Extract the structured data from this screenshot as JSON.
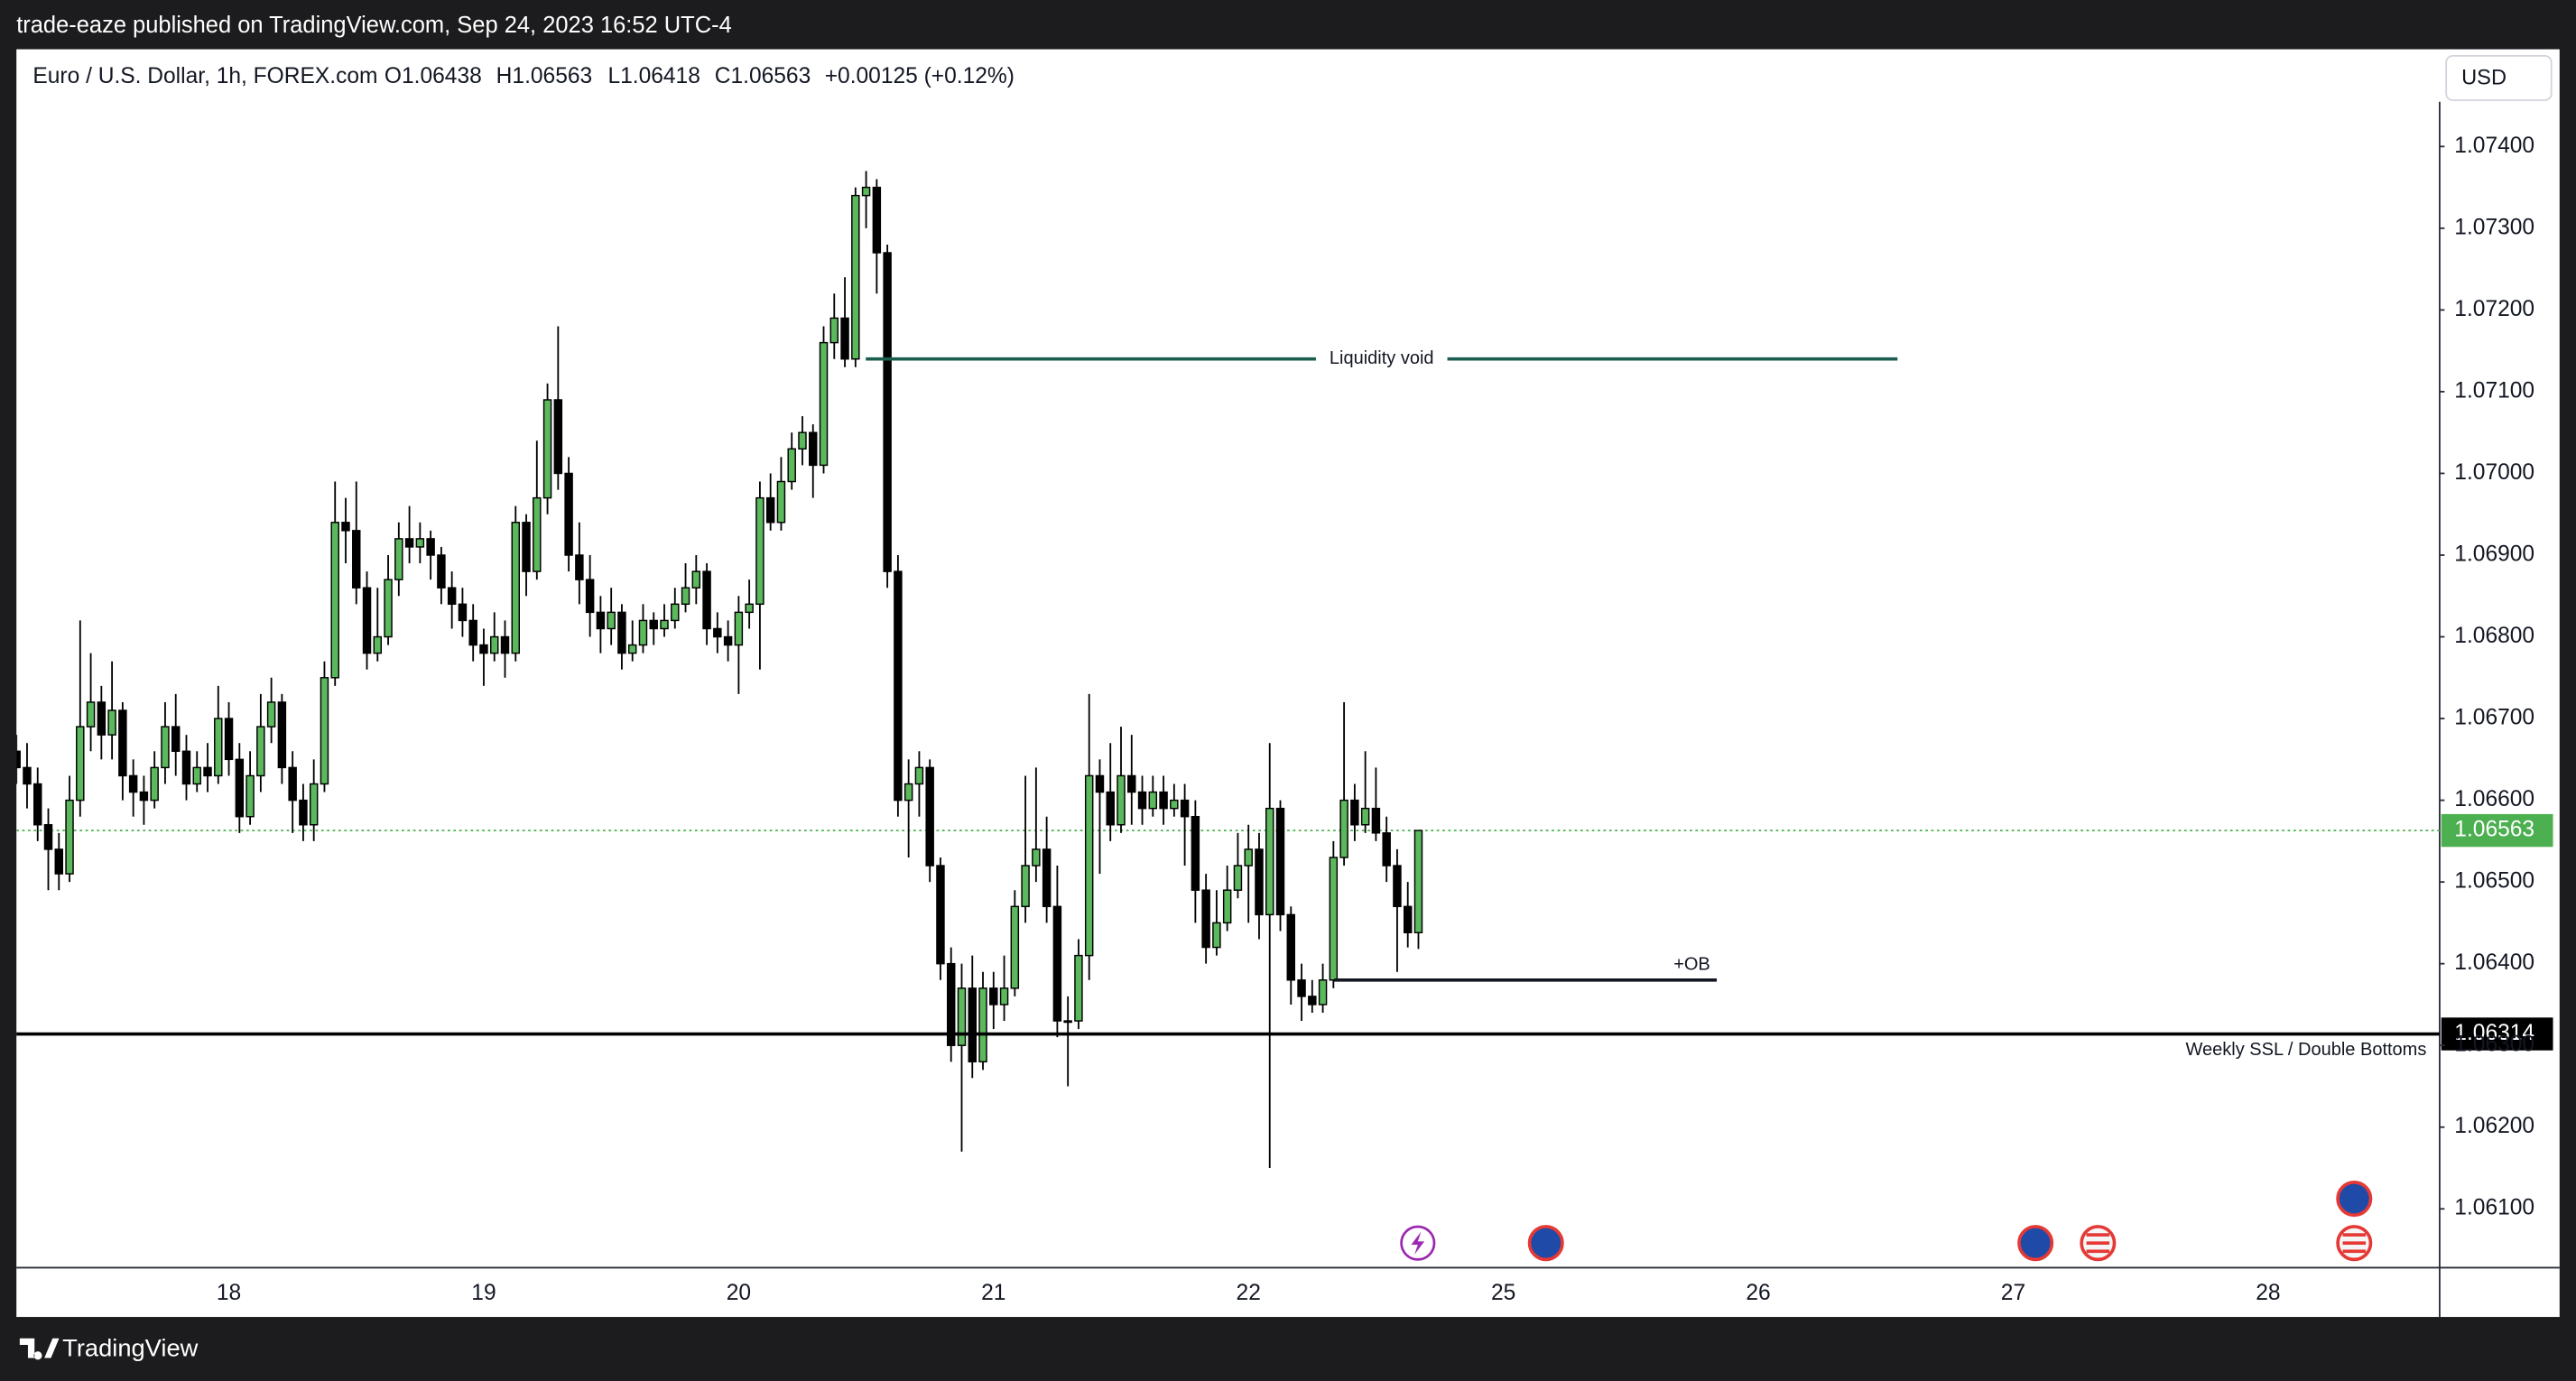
{
  "publisher_note": "trade-eaze published on TradingView.com, Sep 24, 2023 16:52 UTC-4",
  "brand": "TradingView",
  "chart_data": {
    "type": "candlestick",
    "title": "Euro / U.S. Dollar, 1h, FOREX.com",
    "ohlc_labels": [
      "O1.06438",
      "H1.06563",
      "L1.06418",
      "C1.06563"
    ],
    "change_label": "+0.00125 (+0.12%)",
    "currency": "USD",
    "up_color": "#5cb85c",
    "down_color": "#000000",
    "grid": false,
    "categories": [
      null,
      null,
      null,
      null,
      null,
      null,
      null,
      null,
      null,
      null,
      null,
      null,
      null,
      null,
      null,
      null,
      null,
      null,
      null,
      null,
      "18",
      null,
      null,
      null,
      null,
      null,
      null,
      null,
      null,
      null,
      null,
      null,
      null,
      null,
      null,
      null,
      null,
      null,
      null,
      null,
      null,
      null,
      null,
      null,
      "19",
      null,
      null,
      null,
      null,
      null,
      null,
      null,
      null,
      null,
      null,
      null,
      null,
      null,
      null,
      null,
      null,
      null,
      null,
      null,
      null,
      null,
      null,
      null,
      "20",
      null,
      null,
      null,
      null,
      null,
      null,
      null,
      null,
      null,
      null,
      null,
      null,
      null,
      null,
      null,
      null,
      null,
      null,
      null,
      null,
      null,
      null,
      null,
      "21",
      null,
      null,
      null,
      null,
      null,
      null,
      null,
      null,
      null,
      null,
      null,
      null,
      null,
      null,
      null,
      null,
      null,
      null,
      null,
      null,
      null,
      null,
      null,
      "22",
      null,
      null,
      null,
      null,
      null,
      null,
      null,
      null,
      null,
      null,
      null,
      null,
      null,
      null,
      null,
      null,
      null,
      null,
      null,
      null,
      null,
      null,
      null,
      "25",
      null,
      null,
      null,
      null,
      null,
      null,
      null,
      null,
      null,
      null,
      null,
      null,
      null,
      null,
      null,
      null,
      null,
      null,
      null,
      null,
      null,
      null,
      null,
      "26",
      null,
      null,
      null,
      null,
      null,
      null,
      null,
      null,
      null,
      null,
      null,
      null,
      null,
      null,
      null,
      null,
      null,
      null,
      null,
      null,
      null,
      null,
      null,
      "27",
      null,
      null,
      null,
      null,
      null,
      null,
      null,
      null,
      null,
      null,
      null,
      null,
      null,
      null,
      null,
      null,
      null,
      null,
      null,
      null,
      null,
      null,
      null,
      "28",
      null,
      null,
      null,
      null,
      null,
      null,
      null,
      null,
      null,
      null,
      null,
      null,
      null,
      null,
      null
    ],
    "open": [
      1.0666,
      1.0664,
      1.0662,
      1.0657,
      1.0654,
      1.0651,
      1.066,
      1.0669,
      1.0672,
      1.0668,
      1.0671,
      1.0663,
      1.0661,
      1.066,
      1.0664,
      1.0669,
      1.0666,
      1.0662,
      1.0664,
      1.0663,
      1.067,
      1.0665,
      1.0658,
      1.0663,
      1.0669,
      1.0672,
      1.0664,
      1.066,
      1.0657,
      1.0662,
      1.0675,
      1.0694,
      1.0693,
      1.0686,
      1.0678,
      1.068,
      1.0687,
      1.0692,
      1.0691,
      1.0692,
      1.069,
      1.0686,
      1.0684,
      1.0682,
      1.0679,
      1.0678,
      1.068,
      1.0678,
      1.0694,
      1.0688,
      1.0697,
      1.0709,
      1.07,
      1.069,
      1.0687,
      1.0683,
      1.0681,
      1.0683,
      1.0678,
      1.0679,
      1.0682,
      1.0681,
      1.0682,
      1.0684,
      1.0686,
      1.0688,
      1.0681,
      1.068,
      1.0679,
      1.0683,
      1.0684,
      1.0697,
      1.0694,
      1.0699,
      1.0703,
      1.0705,
      1.0701,
      1.0716,
      1.0719,
      1.0714,
      1.0734,
      1.0735,
      1.0727,
      1.0688,
      1.066,
      1.0662,
      1.0664,
      1.0652,
      1.064,
      1.063,
      1.0637,
      1.0628,
      1.0637,
      1.0635,
      1.0637,
      1.0647,
      1.0652,
      1.0654,
      1.0647,
      1.0633,
      1.0633,
      1.0641,
      1.0663,
      1.0661,
      1.0657,
      1.0663,
      1.0661,
      1.0659,
      1.0661,
      1.0659,
      1.066,
      1.0658,
      1.0649,
      1.0642,
      1.0645,
      1.0649,
      1.0652,
      1.0654,
      1.0646,
      1.0659,
      1.0646,
      1.0638,
      1.0636,
      1.0635,
      1.0638,
      1.0653,
      1.066,
      1.0657,
      1.0659,
      1.0656,
      1.0652,
      1.0647,
      1.06438,
      null,
      null,
      null,
      null,
      null,
      null,
      null,
      null,
      null,
      null,
      null,
      null,
      null,
      null,
      null,
      null,
      null,
      null,
      null,
      null,
      null,
      null,
      null,
      null,
      null,
      null,
      null,
      null,
      null,
      null,
      null,
      null,
      null,
      null,
      null,
      null,
      null,
      null,
      null,
      null,
      null,
      null,
      null,
      null,
      null,
      null,
      null,
      null,
      null,
      null,
      null,
      null,
      null,
      null,
      null,
      null,
      null,
      null,
      null,
      null,
      null,
      null,
      null,
      null,
      null,
      null,
      null,
      null,
      null,
      null,
      null,
      null,
      null,
      null,
      null,
      null,
      null,
      null,
      null,
      null,
      null,
      null,
      null,
      null,
      null,
      null,
      null,
      null,
      null,
      null,
      null,
      null,
      null,
      null,
      null
    ],
    "high": [
      1.0668,
      1.0667,
      1.0664,
      1.0659,
      1.0656,
      1.0663,
      1.0682,
      1.0678,
      1.0674,
      1.0677,
      1.0672,
      1.0665,
      1.0663,
      1.0666,
      1.0672,
      1.0673,
      1.0668,
      1.0666,
      1.0667,
      1.0674,
      1.0672,
      1.0667,
      1.0666,
      1.0673,
      1.0675,
      1.0673,
      1.0666,
      1.0662,
      1.0665,
      1.0677,
      1.0699,
      1.0697,
      1.0699,
      1.0688,
      1.0686,
      1.069,
      1.0694,
      1.0696,
      1.0694,
      1.0693,
      1.0691,
      1.0688,
      1.0686,
      1.0684,
      1.0681,
      1.0683,
      1.0682,
      1.0696,
      1.0695,
      1.0704,
      1.0711,
      1.0718,
      1.0702,
      1.0694,
      1.069,
      1.0685,
      1.0686,
      1.0684,
      1.0682,
      1.0684,
      1.0683,
      1.0684,
      1.0686,
      1.0689,
      1.069,
      1.0689,
      1.0683,
      1.0682,
      1.0685,
      1.0687,
      1.0699,
      1.07,
      1.0702,
      1.0705,
      1.0707,
      1.0706,
      1.0718,
      1.0722,
      1.0724,
      1.0735,
      1.0737,
      1.0736,
      1.0728,
      1.069,
      1.0665,
      1.0666,
      1.0665,
      1.0653,
      1.0642,
      1.064,
      1.0641,
      1.0639,
      1.0639,
      1.0641,
      1.0649,
      1.0663,
      1.0664,
      1.0658,
      1.0652,
      1.0636,
      1.0643,
      1.0673,
      1.0665,
      1.0667,
      1.0669,
      1.0668,
      1.0663,
      1.0663,
      1.0663,
      1.0662,
      1.0662,
      1.066,
      1.0651,
      1.0649,
      1.0652,
      1.0656,
      1.0657,
      1.0656,
      1.0667,
      1.066,
      1.0647,
      1.064,
      1.0638,
      1.064,
      1.0655,
      1.0672,
      1.0662,
      1.0666,
      1.0664,
      1.0658,
      1.0654,
      1.065,
      1.06563,
      null,
      null,
      null,
      null,
      null,
      null,
      null,
      null,
      null,
      null,
      null,
      null,
      null,
      null,
      null,
      null,
      null,
      null,
      null,
      null,
      null,
      null,
      null,
      null,
      null,
      null,
      null,
      null,
      null,
      null,
      null,
      null,
      null,
      null,
      null,
      null,
      null,
      null,
      null,
      null,
      null,
      null,
      null,
      null,
      null,
      null,
      null,
      null,
      null,
      null,
      null,
      null,
      null,
      null,
      null,
      null,
      null,
      null,
      null,
      null,
      null,
      null,
      null,
      null,
      null,
      null,
      null,
      null,
      null,
      null,
      null,
      null,
      null,
      null,
      null,
      null,
      null,
      null,
      null,
      null,
      null,
      null,
      null,
      null,
      null,
      null,
      null,
      null,
      null,
      null,
      null,
      null,
      null,
      null,
      null
    ],
    "low": [
      1.0662,
      1.0659,
      1.0655,
      1.0649,
      1.0649,
      1.065,
      1.0658,
      1.0666,
      1.0665,
      1.0665,
      1.066,
      1.0658,
      1.0657,
      1.0659,
      1.0662,
      1.0663,
      1.066,
      1.0661,
      1.0661,
      1.0662,
      1.0663,
      1.0656,
      1.0657,
      1.0661,
      1.0667,
      1.0662,
      1.0656,
      1.0655,
      1.0655,
      1.0661,
      1.0674,
      1.0689,
      1.0684,
      1.0676,
      1.0677,
      1.0679,
      1.0685,
      1.0689,
      1.0689,
      1.0687,
      1.0684,
      1.0681,
      1.068,
      1.0677,
      1.0674,
      1.0677,
      1.0675,
      1.0677,
      1.0685,
      1.0687,
      1.0695,
      1.0698,
      1.0688,
      1.0684,
      1.068,
      1.0678,
      1.0679,
      1.0676,
      1.0677,
      1.0678,
      1.0679,
      1.068,
      1.0681,
      1.0683,
      1.0684,
      1.0679,
      1.0678,
      1.0677,
      1.0673,
      1.0681,
      1.0676,
      1.0693,
      1.0693,
      1.0698,
      1.0701,
      1.0697,
      1.07,
      1.0714,
      1.0713,
      1.0713,
      1.073,
      1.0722,
      1.0686,
      1.0658,
      1.0653,
      1.0658,
      1.065,
      1.0638,
      1.0628,
      1.0617,
      1.0626,
      1.0627,
      1.0632,
      1.0633,
      1.0636,
      1.0645,
      1.065,
      1.0645,
      1.0631,
      1.0625,
      1.0632,
      1.0638,
      1.0651,
      1.0655,
      1.0656,
      1.0657,
      1.0657,
      1.0658,
      1.0657,
      1.0658,
      1.0652,
      1.0645,
      1.064,
      1.0641,
      1.0644,
      1.0648,
      1.0645,
      1.0643,
      1.0615,
      1.0644,
      1.0635,
      1.0633,
      1.0634,
      1.0634,
      1.0637,
      1.0652,
      1.0655,
      1.0656,
      1.0655,
      1.065,
      1.0639,
      1.0642,
      1.06418,
      null,
      null,
      null,
      null,
      null,
      null,
      null,
      null,
      null,
      null,
      null,
      null,
      null,
      null,
      null,
      null,
      null,
      null,
      null,
      null,
      null,
      null,
      null,
      null,
      null,
      null,
      null,
      null,
      null,
      null,
      null,
      null,
      null,
      null,
      null,
      null,
      null,
      null,
      null,
      null,
      null,
      null,
      null,
      null,
      null,
      null,
      null,
      null,
      null,
      null,
      null,
      null,
      null,
      null,
      null,
      null,
      null,
      null,
      null,
      null,
      null,
      null,
      null,
      null,
      null,
      null,
      null,
      null,
      null,
      null,
      null,
      null,
      null,
      null,
      null,
      null,
      null,
      null,
      null,
      null,
      null,
      null,
      null,
      null,
      null,
      null,
      null,
      null,
      null,
      null,
      null,
      null,
      null,
      null,
      null
    ],
    "close": [
      1.0664,
      1.0662,
      1.0657,
      1.0654,
      1.0651,
      1.066,
      1.0669,
      1.0672,
      1.0668,
      1.0671,
      1.0663,
      1.0661,
      1.066,
      1.0664,
      1.0669,
      1.0666,
      1.0662,
      1.0664,
      1.0663,
      1.067,
      1.0665,
      1.0658,
      1.0663,
      1.0669,
      1.0672,
      1.0664,
      1.066,
      1.0657,
      1.0662,
      1.0675,
      1.0694,
      1.0693,
      1.0686,
      1.0678,
      1.068,
      1.0687,
      1.0692,
      1.0691,
      1.0692,
      1.069,
      1.0686,
      1.0684,
      1.0682,
      1.0679,
      1.0678,
      1.068,
      1.0678,
      1.0694,
      1.0688,
      1.0697,
      1.0709,
      1.07,
      1.069,
      1.0687,
      1.0683,
      1.0681,
      1.0683,
      1.0678,
      1.0679,
      1.0682,
      1.0681,
      1.0682,
      1.0684,
      1.0686,
      1.0688,
      1.0681,
      1.068,
      1.0679,
      1.0683,
      1.0684,
      1.0697,
      1.0694,
      1.0699,
      1.0703,
      1.0705,
      1.0701,
      1.0716,
      1.0719,
      1.0714,
      1.0734,
      1.0735,
      1.0727,
      1.0688,
      1.066,
      1.0662,
      1.0664,
      1.0652,
      1.064,
      1.063,
      1.0637,
      1.0628,
      1.0637,
      1.0635,
      1.0637,
      1.0647,
      1.0652,
      1.0654,
      1.0647,
      1.0633,
      1.0633,
      1.0641,
      1.0663,
      1.0661,
      1.0657,
      1.0663,
      1.0661,
      1.0659,
      1.0661,
      1.0659,
      1.066,
      1.0658,
      1.0649,
      1.0642,
      1.0645,
      1.0649,
      1.0652,
      1.0654,
      1.0646,
      1.0659,
      1.0646,
      1.0638,
      1.0636,
      1.0635,
      1.0638,
      1.0653,
      1.066,
      1.0657,
      1.0659,
      1.0656,
      1.0652,
      1.0647,
      1.06438,
      1.06563,
      null,
      null,
      null,
      null,
      null,
      null,
      null,
      null,
      null,
      null,
      null,
      null,
      null,
      null,
      null,
      null,
      null,
      null,
      null,
      null,
      null,
      null,
      null,
      null,
      null,
      null,
      null,
      null,
      null,
      null,
      null,
      null,
      null,
      null,
      null,
      null,
      null,
      null,
      null,
      null,
      null,
      null,
      null,
      null,
      null,
      null,
      null,
      null,
      null,
      null,
      null,
      null,
      null,
      null,
      null,
      null,
      null,
      null,
      null,
      null,
      null,
      null,
      null,
      null,
      null,
      null,
      null,
      null,
      null,
      null,
      null,
      null,
      null,
      null,
      null,
      null,
      null,
      null,
      null,
      null,
      null,
      null,
      null,
      null,
      null,
      null,
      null,
      null,
      null,
      null,
      null,
      null,
      null,
      null,
      null
    ],
    "ylim": [
      1.0603,
      1.07517
    ],
    "yticks": [
      {
        "value": 1.061,
        "label": "1.06100"
      },
      {
        "value": 1.062,
        "label": "1.06200"
      },
      {
        "value": 1.063,
        "label": "1.06300"
      },
      {
        "value": 1.064,
        "label": "1.06400"
      },
      {
        "value": 1.065,
        "label": "1.06500"
      },
      {
        "value": 1.066,
        "label": "1.06600"
      },
      {
        "value": 1.067,
        "label": "1.06700"
      },
      {
        "value": 1.068,
        "label": "1.06800"
      },
      {
        "value": 1.069,
        "label": "1.06900"
      },
      {
        "value": 1.07,
        "label": "1.07000"
      },
      {
        "value": 1.071,
        "label": "1.07100"
      },
      {
        "value": 1.072,
        "label": "1.07200"
      },
      {
        "value": 1.073,
        "label": "1.07300"
      },
      {
        "value": 1.074,
        "label": "1.07400"
      }
    ],
    "last_price": 1.06563,
    "last_price_color": "#4caf50",
    "levels": [
      {
        "name": "Liquidity void",
        "value": 1.0714,
        "color": "#1b5e4f"
      },
      {
        "name": "+OB",
        "value": 1.0638,
        "color": "#131722"
      },
      {
        "name": "Weekly SSL / Double Bottoms",
        "value": 1.06314,
        "color": "#000000"
      }
    ]
  }
}
